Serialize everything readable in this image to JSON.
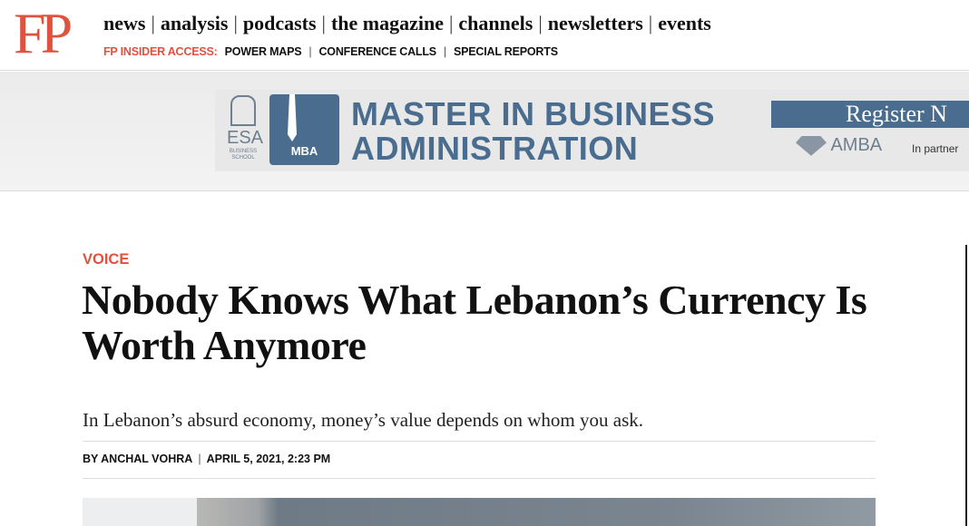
{
  "logo": "FP",
  "nav": {
    "items": [
      "news",
      "analysis",
      "podcasts",
      "the magazine",
      "channels",
      "newsletters",
      "events"
    ]
  },
  "subnav": {
    "label": "FP INSIDER ACCESS:",
    "items": [
      "POWER MAPS",
      "CONFERENCE CALLS",
      "SPECIAL REPORTS"
    ]
  },
  "ad": {
    "school": "ESA",
    "school_sub": "BUSINESS SCHOOL",
    "badge": "MBA",
    "title_line1": "MASTER IN BUSINESS",
    "title_line2": "ADMINISTRATION",
    "cta": "Register N",
    "accreditation": "AMBA",
    "partner": "In partner",
    "brand_color": "#4a6d8f"
  },
  "article": {
    "category": "VOICE",
    "title": "Nobody Knows What Lebanon’s Currency Is Worth Anymore",
    "dek": "In Lebanon’s absurd economy, money’s value depends on whom you ask.",
    "author": "BY ANCHAL VOHRA",
    "date": "APRIL 5, 2021, 2:23 PM"
  },
  "colors": {
    "accent": "#e0523e"
  }
}
